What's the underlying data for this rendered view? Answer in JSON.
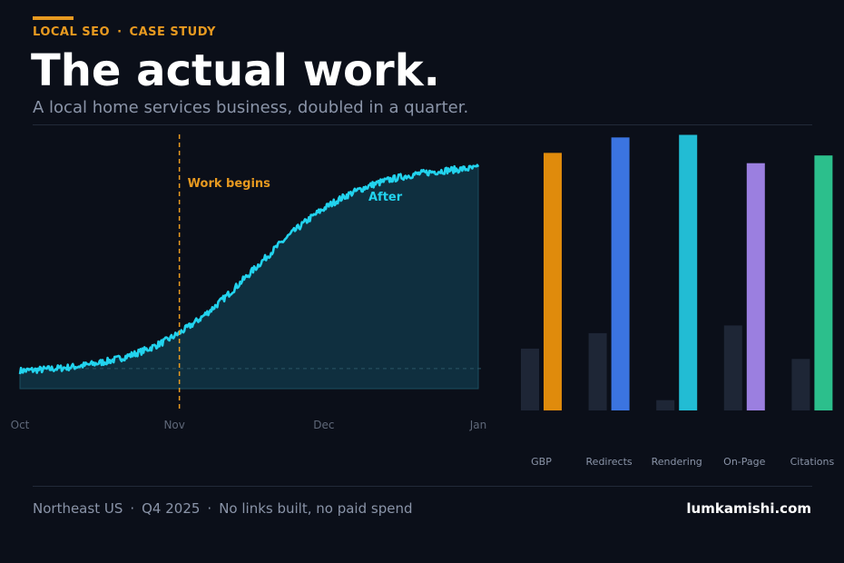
{
  "header": {
    "kicker_left": "LOCAL SEO",
    "kicker_sep": "·",
    "kicker_right": "CASE STUDY",
    "title": "The actual work.",
    "subtitle": "A local home services business, doubled in a quarter."
  },
  "footer": {
    "region": "Northeast US",
    "period": "Q4 2025",
    "note": "No links built, no paid spend",
    "sep": "·",
    "site": "lumkamishi.com"
  },
  "colors": {
    "background": "#0b0f19",
    "accent": "#e89a20",
    "line": "#22d3ee",
    "before_bar": "#1e2636",
    "bars": [
      "#e08b0c",
      "#3b74e0",
      "#22bcd4",
      "#9b7fe0",
      "#2cbf8c"
    ]
  },
  "chart_data": [
    {
      "type": "line",
      "x_ticks": [
        "Oct",
        "Nov",
        "Dec",
        "Jan"
      ],
      "xlim": [
        "Oct",
        "Jan"
      ],
      "ylim": [
        0,
        100
      ],
      "baseline_value": 9,
      "curve": {
        "start": 8,
        "plateau": 100,
        "midpoint": "Nov 17",
        "noise_amplitude": 1.5
      },
      "annotations": [
        {
          "text": "Work begins",
          "at": "Nov 2",
          "style": "dashed vertical line"
        },
        {
          "text": "After",
          "style": "series label"
        }
      ],
      "grid": false
    },
    {
      "type": "bar",
      "categories": [
        "GBP",
        "Redirects",
        "Rendering",
        "On-Page",
        "Citations"
      ],
      "series": [
        {
          "values": [
            24,
            30,
            4,
            33,
            20
          ]
        },
        {
          "values": [
            100,
            106,
            107,
            96,
            99
          ]
        }
      ],
      "ylim": [
        0,
        110
      ],
      "grid": false
    }
  ]
}
